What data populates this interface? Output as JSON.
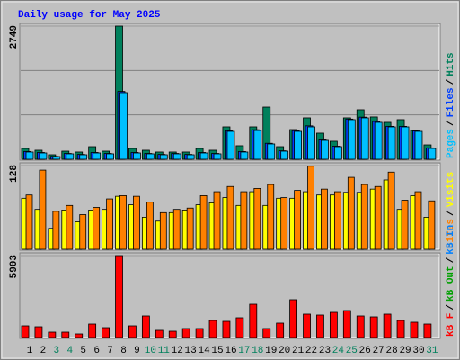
{
  "title": "Daily usage for May 2025",
  "legend_separator": "/",
  "chart_data": [
    {
      "type": "bar",
      "ylim": [
        0,
        2749
      ],
      "yticks": [
        2749
      ],
      "grid": true,
      "series": [
        {
          "name": "Hits",
          "color": "#00805c",
          "values": [
            223,
            186,
            93,
            167,
            149,
            260,
            167,
            2749,
            223,
            186,
            149,
            149,
            149,
            223,
            186,
            669,
            279,
            669,
            1077,
            260,
            613,
            855,
            539,
            372,
            855,
            1022,
            874,
            762,
            818,
            594,
            297
          ]
        },
        {
          "name": "Files",
          "color": "#0040ff",
          "values": [
            160,
            140,
            60,
            120,
            100,
            140,
            120,
            1400,
            140,
            120,
            100,
            120,
            100,
            140,
            120,
            590,
            160,
            610,
            330,
            175,
            590,
            690,
            400,
            270,
            830,
            870,
            780,
            680,
            680,
            585,
            235
          ]
        },
        {
          "name": "Pages",
          "color": "#00c0ff",
          "values": [
            149,
            130,
            56,
            112,
            93,
            130,
            112,
            1375,
            130,
            112,
            93,
            112,
            93,
            130,
            112,
            576,
            149,
            594,
            316,
            167,
            576,
            669,
            390,
            260,
            818,
            855,
            762,
            669,
            669,
            576,
            223
          ]
        }
      ]
    },
    {
      "type": "bar",
      "ylim": [
        0,
        128
      ],
      "yticks": [
        128
      ],
      "grid": false,
      "series": [
        {
          "name": "Visits",
          "color": "#ffff00",
          "values": [
            78,
            61,
            32,
            60,
            42,
            60,
            61,
            81,
            68,
            49,
            43,
            56,
            60,
            68,
            71,
            79,
            67,
            88,
            67,
            78,
            78,
            88,
            83,
            83,
            87,
            87,
            92,
            106,
            61,
            82,
            49
          ]
        },
        {
          "name": "Sites",
          "color": "#ff8000",
          "values": [
            83,
            121,
            58,
            67,
            53,
            64,
            77,
            82,
            81,
            72,
            56,
            61,
            63,
            82,
            88,
            96,
            88,
            93,
            99,
            79,
            90,
            127,
            92,
            88,
            110,
            99,
            96,
            118,
            75,
            88,
            74
          ]
        }
      ]
    },
    {
      "type": "bar",
      "ylim": [
        0,
        5903
      ],
      "yticks": [
        5903
      ],
      "grid": false,
      "categories": [
        "1",
        "2",
        "3",
        "4",
        "5",
        "6",
        "7",
        "8",
        "9",
        "10",
        "11",
        "12",
        "13",
        "14",
        "15",
        "16",
        "17",
        "18",
        "19",
        "20",
        "21",
        "22",
        "23",
        "24",
        "25",
        "26",
        "27",
        "28",
        "29",
        "30",
        "31"
      ],
      "highlighted": [
        2,
        3,
        9,
        10,
        16,
        17,
        23,
        24,
        30
      ],
      "highlight_color": "#00805c",
      "series": [
        {
          "name": "kB F",
          "color": "#ff0000",
          "values": [
            843,
            778,
            389,
            389,
            259,
            973,
            713,
            5903,
            843,
            1557,
            519,
            454,
            649,
            649,
            1232,
            1168,
            1427,
            2400,
            649,
            1038,
            2725,
            1687,
            1622,
            1816,
            1946,
            1557,
            1492,
            1687,
            1232,
            1103,
            973
          ]
        }
      ],
      "extra_legend": [
        {
          "name": "kB Out",
          "color": "#00a000"
        },
        {
          "name": "kB In",
          "color": "#0080ff"
        }
      ]
    }
  ]
}
